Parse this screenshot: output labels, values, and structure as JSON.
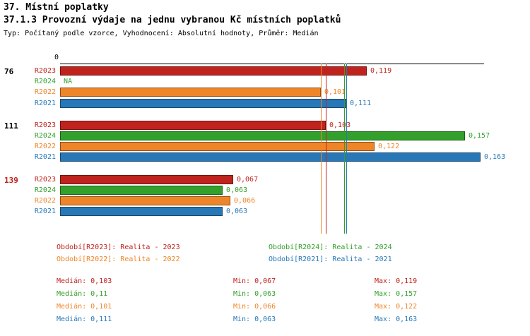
{
  "title": "37. Místní poplatky",
  "subtitle": "37.1.3 Provozní výdaje na jednu vybranou Kč místních poplatků",
  "meta": "Typ: Počítaný podle vzorce, Vyhodnocení: Absolutní hodnoty, Průměr: Medián",
  "colors": {
    "series": {
      "R2023": "#c0231d",
      "R2024": "#33a02c",
      "R2022": "#ef8529",
      "R2021": "#2878b8"
    },
    "axis": "#000000",
    "highlight_group_label": "#c0231d"
  },
  "chart_data": {
    "type": "bar",
    "orientation": "horizontal",
    "x_axis": {
      "min": 0,
      "zero_label": "0"
    },
    "value_format": "decimal-comma",
    "series_order": [
      "R2023",
      "R2024",
      "R2022",
      "R2021"
    ],
    "groups": [
      {
        "label": "76",
        "label_color": "#000000",
        "bars": [
          {
            "series": "R2023",
            "value": 0.119,
            "display": "0,119"
          },
          {
            "series": "R2024",
            "value": null,
            "display": "NA"
          },
          {
            "series": "R2022",
            "value": 0.101,
            "display": "0,101"
          },
          {
            "series": "R2021",
            "value": 0.111,
            "display": "0,111"
          }
        ]
      },
      {
        "label": "111",
        "label_color": "#000000",
        "bars": [
          {
            "series": "R2023",
            "value": 0.103,
            "display": "0,103"
          },
          {
            "series": "R2024",
            "value": 0.157,
            "display": "0,157"
          },
          {
            "series": "R2022",
            "value": 0.122,
            "display": "0,122"
          },
          {
            "series": "R2021",
            "value": 0.163,
            "display": "0,163"
          }
        ]
      },
      {
        "label": "139",
        "label_color": "#c0231d",
        "bars": [
          {
            "series": "R2023",
            "value": 0.067,
            "display": "0,067"
          },
          {
            "series": "R2024",
            "value": 0.063,
            "display": "0,063"
          },
          {
            "series": "R2022",
            "value": 0.066,
            "display": "0,066"
          },
          {
            "series": "R2021",
            "value": 0.063,
            "display": "0,063"
          }
        ]
      }
    ],
    "reference_lines": [
      {
        "series": "R2022",
        "value": 0.101
      },
      {
        "series": "R2023",
        "value": 0.103
      },
      {
        "series": "R2024",
        "value": 0.11
      },
      {
        "series": "R2021",
        "value": 0.111
      }
    ]
  },
  "legend": [
    {
      "series": "R2023",
      "text": "Období[R2023]: Realita - 2023"
    },
    {
      "series": "R2024",
      "text": "Období[R2024]: Realita - 2024"
    },
    {
      "series": "R2022",
      "text": "Období[R2022]: Realita - 2022"
    },
    {
      "series": "R2021",
      "text": "Období[R2021]: Realita - 2021"
    }
  ],
  "stats": [
    {
      "series": "R2023",
      "median": "Medián: 0,103",
      "min": "Min: 0,067",
      "max": "Max: 0,119"
    },
    {
      "series": "R2024",
      "median": "Medián: 0,11",
      "min": "Min: 0,063",
      "max": "Max: 0,157"
    },
    {
      "series": "R2022",
      "median": "Medián: 0,101",
      "min": "Min: 0,066",
      "max": "Max: 0,122"
    },
    {
      "series": "R2021",
      "median": "Medián: 0,111",
      "min": "Min: 0,063",
      "max": "Max: 0,163"
    }
  ]
}
